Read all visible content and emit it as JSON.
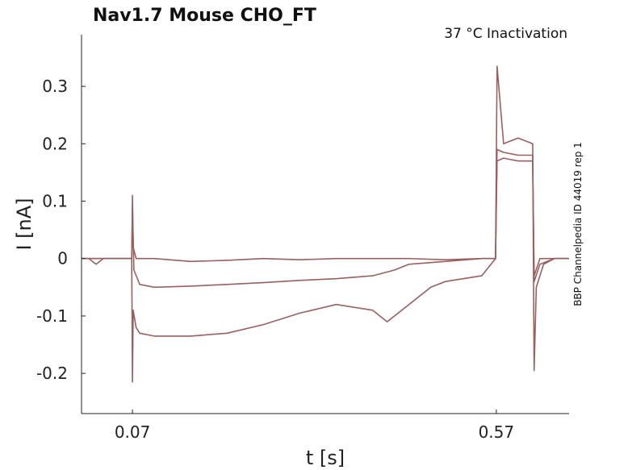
{
  "chart_data": {
    "type": "line",
    "title": "Nav1.7  Mouse  CHO_FT",
    "annotation": "37 °C  Inactivation",
    "side_label": "BBP Channelpedia ID 44019 rep 1",
    "xlabel": "t [s]",
    "ylabel": "I [nA]",
    "xlim": [
      0.0,
      0.67
    ],
    "ylim": [
      -0.27,
      0.39
    ],
    "xticks": [
      0.07,
      0.57
    ],
    "xtick_labels": [
      "0.07",
      "0.57"
    ],
    "yticks": [
      -0.2,
      -0.1,
      0,
      0.1,
      0.2,
      0.3
    ],
    "ytick_labels": [
      "-0.2",
      "-0.1",
      "0",
      "0.1",
      "0.2",
      "0.3"
    ],
    "line_color": "#9a5f5f",
    "series": [
      {
        "name": "trace-flat",
        "x": [
          0,
          0.01,
          0.02,
          0.03,
          0.05,
          0.069,
          0.07,
          0.071,
          0.075,
          0.1,
          0.15,
          0.2,
          0.25,
          0.3,
          0.35,
          0.4,
          0.45,
          0.5,
          0.55,
          0.569,
          0.571,
          0.58,
          0.6,
          0.62,
          0.622,
          0.63,
          0.65,
          0.67
        ],
        "y": [
          0.0,
          0.0,
          -0.01,
          0.0,
          0.0,
          0.0,
          0.11,
          0.02,
          0.0,
          0.0,
          -0.005,
          -0.003,
          0.0,
          -0.002,
          0.0,
          0.0,
          0.0,
          -0.002,
          0.0,
          0.0,
          0.17,
          0.175,
          0.17,
          0.17,
          -0.03,
          0.0,
          0.0,
          0.0
        ]
      },
      {
        "name": "trace-mid",
        "x": [
          0,
          0.02,
          0.05,
          0.069,
          0.07,
          0.072,
          0.08,
          0.1,
          0.15,
          0.2,
          0.25,
          0.3,
          0.35,
          0.4,
          0.43,
          0.45,
          0.5,
          0.55,
          0.569,
          0.571,
          0.58,
          0.6,
          0.62,
          0.622,
          0.63,
          0.65,
          0.67
        ],
        "y": [
          0.0,
          0.0,
          0.0,
          0.0,
          0.09,
          -0.02,
          -0.045,
          -0.05,
          -0.048,
          -0.045,
          -0.042,
          -0.038,
          -0.035,
          -0.03,
          -0.02,
          -0.01,
          -0.005,
          0.0,
          0.0,
          0.19,
          0.185,
          0.18,
          0.18,
          -0.04,
          -0.01,
          0.0,
          0.0
        ]
      },
      {
        "name": "trace-deep",
        "x": [
          0,
          0.02,
          0.05,
          0.069,
          0.07,
          0.071,
          0.075,
          0.08,
          0.1,
          0.15,
          0.2,
          0.25,
          0.3,
          0.35,
          0.4,
          0.42,
          0.45,
          0.48,
          0.5,
          0.55,
          0.569,
          0.571,
          0.58,
          0.6,
          0.62,
          0.622,
          0.625,
          0.635,
          0.65,
          0.67
        ],
        "y": [
          0.0,
          0.0,
          0.0,
          0.0,
          -0.215,
          -0.09,
          -0.12,
          -0.13,
          -0.135,
          -0.135,
          -0.13,
          -0.115,
          -0.095,
          -0.08,
          -0.09,
          -0.11,
          -0.08,
          -0.05,
          -0.04,
          -0.03,
          0.0,
          0.335,
          0.2,
          0.21,
          0.2,
          -0.195,
          -0.05,
          -0.01,
          0.0,
          0.0
        ]
      }
    ]
  }
}
